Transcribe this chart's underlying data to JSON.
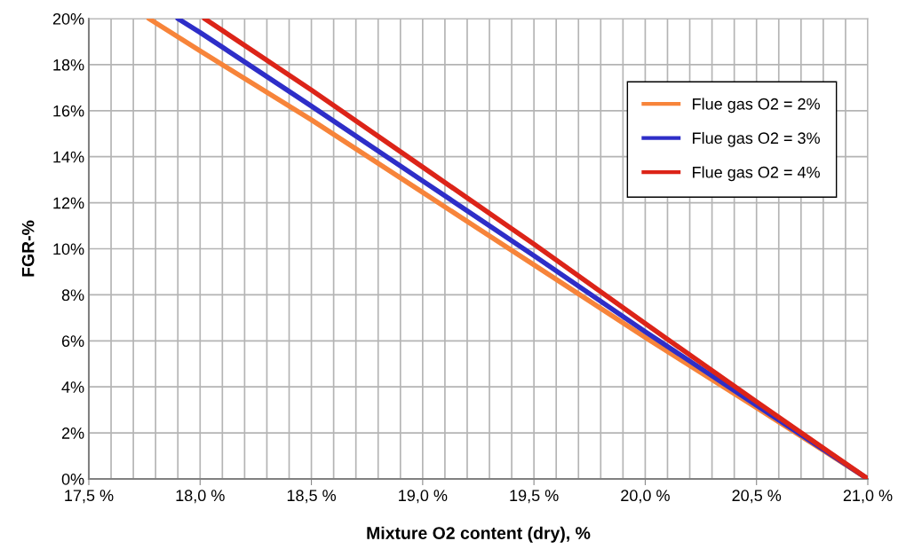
{
  "chart_data": {
    "type": "line",
    "xlabel": "Mixture O2 content (dry), %",
    "ylabel": "FGR-%",
    "series": [
      {
        "name": "Flue gas O2 = 2%",
        "color": "#f7843a",
        "x": [
          17.77,
          18.0,
          18.5,
          19.0,
          19.5,
          20.0,
          20.5,
          21.0
        ],
        "values": [
          20,
          18.6,
          15.6,
          12.45,
          9.3,
          6.15,
          3.1,
          0
        ]
      },
      {
        "name": "Flue gas O2 = 3%",
        "color": "#2e2ec8",
        "x": [
          17.9,
          18.0,
          18.5,
          19.0,
          19.5,
          20.0,
          20.5,
          21.0
        ],
        "values": [
          20,
          19.4,
          16.2,
          12.95,
          9.7,
          6.4,
          3.2,
          0
        ]
      },
      {
        "name": "Flue gas O2 = 4%",
        "color": "#dc2418",
        "x": [
          18.02,
          18.5,
          19.0,
          19.5,
          20.0,
          20.5,
          21.0
        ],
        "values": [
          20,
          16.9,
          13.55,
          10.2,
          6.75,
          3.35,
          0
        ]
      }
    ],
    "xlim": [
      17.5,
      21.0
    ],
    "xticks": [
      {
        "value": 17.5,
        "label": "17,5 %"
      },
      {
        "value": 17.6,
        "label": null
      },
      {
        "value": 17.7,
        "label": null
      },
      {
        "value": 17.8,
        "label": null
      },
      {
        "value": 17.9,
        "label": null
      },
      {
        "value": 18.0,
        "label": "18,0 %"
      },
      {
        "value": 18.1,
        "label": null
      },
      {
        "value": 18.2,
        "label": null
      },
      {
        "value": 18.3,
        "label": null
      },
      {
        "value": 18.4,
        "label": null
      },
      {
        "value": 18.5,
        "label": "18,5 %"
      },
      {
        "value": 18.6,
        "label": null
      },
      {
        "value": 18.7,
        "label": null
      },
      {
        "value": 18.8,
        "label": null
      },
      {
        "value": 18.9,
        "label": null
      },
      {
        "value": 19.0,
        "label": "19,0 %"
      },
      {
        "value": 19.1,
        "label": null
      },
      {
        "value": 19.2,
        "label": null
      },
      {
        "value": 19.3,
        "label": null
      },
      {
        "value": 19.4,
        "label": null
      },
      {
        "value": 19.5,
        "label": "19,5 %"
      },
      {
        "value": 19.6,
        "label": null
      },
      {
        "value": 19.7,
        "label": null
      },
      {
        "value": 19.8,
        "label": null
      },
      {
        "value": 19.9,
        "label": null
      },
      {
        "value": 20.0,
        "label": "20,0 %"
      },
      {
        "value": 20.1,
        "label": null
      },
      {
        "value": 20.2,
        "label": null
      },
      {
        "value": 20.3,
        "label": null
      },
      {
        "value": 20.4,
        "label": null
      },
      {
        "value": 20.5,
        "label": "20,5 %"
      },
      {
        "value": 20.6,
        "label": null
      },
      {
        "value": 20.7,
        "label": null
      },
      {
        "value": 20.8,
        "label": null
      },
      {
        "value": 20.9,
        "label": null
      },
      {
        "value": 21.0,
        "label": "21,0 %"
      }
    ],
    "ylim": [
      0,
      20
    ],
    "yticks": [
      {
        "value": 0,
        "label": "0%"
      },
      {
        "value": 2,
        "label": "2%"
      },
      {
        "value": 4,
        "label": "4%"
      },
      {
        "value": 6,
        "label": "6%"
      },
      {
        "value": 8,
        "label": "8%"
      },
      {
        "value": 10,
        "label": "10%"
      },
      {
        "value": 12,
        "label": "12%"
      },
      {
        "value": 14,
        "label": "14%"
      },
      {
        "value": 16,
        "label": "16%"
      },
      {
        "value": 18,
        "label": "18%"
      },
      {
        "value": 20,
        "label": "20%"
      }
    ],
    "grid": true,
    "legend": "top right",
    "marker": "none",
    "line_style": "solid"
  }
}
